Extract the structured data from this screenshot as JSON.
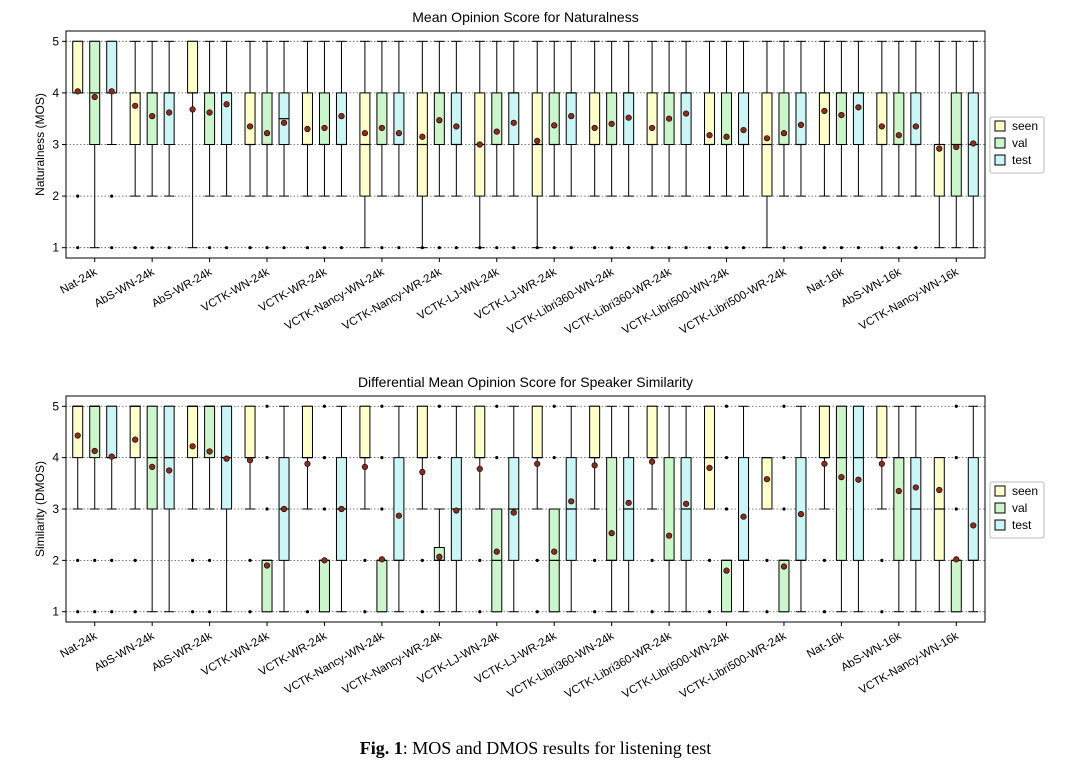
{
  "caption": {
    "label": "Fig. 1",
    "text": ": MOS and DMOS results for listening test"
  },
  "colors": {
    "seen": "#ffffcc",
    "val": "#ccf5cc",
    "test": "#ccf5f5",
    "mean": "#8b2a1e"
  },
  "chart_data": [
    {
      "type": "box",
      "title": "Mean Opinion Score for Naturalness",
      "ylabel": "Naturalness (MOS)",
      "ylim": [
        0.8,
        5.2
      ],
      "yticks": [
        1,
        2,
        3,
        4,
        5
      ],
      "grid": "horizontal dotted",
      "legend": {
        "position": "right",
        "entries": [
          "seen",
          "val",
          "test"
        ]
      },
      "categories": [
        "Nat-24k",
        "AbS-WN-24k",
        "AbS-WR-24k",
        "VCTK-WN-24k",
        "VCTK-WR-24k",
        "VCTK-Nancy-WN-24k",
        "VCTK-Nancy-WR-24k",
        "VCTK-LJ-WN-24k",
        "VCTK-LJ-WR-24k",
        "VCTK-Libri360-WN-24k",
        "VCTK-Libri360-WR-24k",
        "VCTK-Libri500-WN-24k",
        "VCTK-Libri500-WR-24k",
        "Nat-16k",
        "AbS-WN-16k",
        "VCTK-Nancy-WN-16k"
      ],
      "series": [
        {
          "name": "seen",
          "stats": [
            [
              4,
              4,
              4,
              5,
              5,
              4.03
            ],
            [
              2,
              3,
              4,
              4,
              5,
              3.75
            ],
            [
              1,
              4,
              4,
              5,
              5,
              3.68
            ],
            [
              2,
              3,
              3,
              4,
              5,
              3.35
            ],
            [
              2,
              3,
              3,
              4,
              5,
              3.3
            ],
            [
              1,
              2,
              3,
              4,
              5,
              3.22
            ],
            [
              1,
              2,
              3,
              4,
              5,
              3.15
            ],
            [
              1,
              2,
              3,
              4,
              5,
              3.0
            ],
            [
              1,
              2,
              3,
              4,
              5,
              3.07
            ],
            [
              2,
              3,
              3,
              4,
              5,
              3.32
            ],
            [
              2,
              3,
              3,
              4,
              5,
              3.32
            ],
            [
              2,
              3,
              3,
              4,
              5,
              3.18
            ],
            [
              1,
              2,
              3,
              4,
              5,
              3.12
            ],
            [
              2,
              3,
              4,
              4,
              5,
              3.65
            ],
            [
              2,
              3,
              3,
              4,
              5,
              3.35
            ],
            [
              1,
              2,
              3,
              3,
              5,
              2.92
            ]
          ],
          "outliers": [
            [
              2,
              1
            ],
            [
              1
            ],
            [],
            [
              1
            ],
            [
              1
            ],
            [],
            [
              1
            ],
            [
              1
            ],
            [
              1
            ],
            [
              1
            ],
            [
              1
            ],
            [
              1
            ],
            [],
            [
              1
            ],
            [
              1
            ],
            []
          ]
        },
        {
          "name": "val",
          "stats": [
            [
              1,
              3,
              4,
              5,
              5,
              3.92
            ],
            [
              2,
              3,
              4,
              4,
              5,
              3.55
            ],
            [
              2,
              3,
              4,
              4,
              5,
              3.62
            ],
            [
              2,
              3,
              3,
              4,
              5,
              3.22
            ],
            [
              2,
              3,
              3,
              4,
              5,
              3.32
            ],
            [
              2,
              3,
              3,
              4,
              5,
              3.32
            ],
            [
              2,
              3,
              4,
              4,
              5,
              3.47
            ],
            [
              2,
              3,
              3,
              4,
              5,
              3.25
            ],
            [
              2,
              3,
              3,
              4,
              5,
              3.37
            ],
            [
              2,
              3,
              3,
              4,
              5,
              3.4
            ],
            [
              2,
              3,
              4,
              4,
              5,
              3.5
            ],
            [
              2,
              3,
              3,
              4,
              5,
              3.15
            ],
            [
              2,
              3,
              3,
              4,
              5,
              3.22
            ],
            [
              2,
              3,
              4,
              4,
              5,
              3.57
            ],
            [
              2,
              3,
              3,
              4,
              5,
              3.18
            ],
            [
              1,
              2,
              3,
              4,
              5,
              2.95
            ]
          ],
          "outliers": [
            [],
            [
              1
            ],
            [
              1
            ],
            [
              1
            ],
            [
              1
            ],
            [
              1
            ],
            [
              1
            ],
            [
              1
            ],
            [
              1
            ],
            [
              1
            ],
            [
              1
            ],
            [
              1
            ],
            [
              1
            ],
            [
              1
            ],
            [
              1
            ],
            []
          ]
        },
        {
          "name": "test",
          "stats": [
            [
              3,
              4,
              4,
              5,
              5,
              4.03
            ],
            [
              2,
              3,
              4,
              4,
              5,
              3.62
            ],
            [
              2,
              3,
              4,
              4,
              5,
              3.78
            ],
            [
              2,
              3,
              3.5,
              4,
              5,
              3.42
            ],
            [
              2,
              3,
              3,
              4,
              5,
              3.55
            ],
            [
              2,
              3,
              3,
              4,
              5,
              3.22
            ],
            [
              2,
              3,
              3,
              4,
              5,
              3.35
            ],
            [
              2,
              3,
              4,
              4,
              5,
              3.42
            ],
            [
              2,
              3,
              4,
              4,
              5,
              3.55
            ],
            [
              2,
              3,
              4,
              4,
              5,
              3.52
            ],
            [
              2,
              3,
              4,
              4,
              5,
              3.6
            ],
            [
              2,
              3,
              3,
              4,
              5,
              3.28
            ],
            [
              2,
              3,
              3,
              4,
              5,
              3.38
            ],
            [
              2,
              3,
              4,
              4,
              5,
              3.72
            ],
            [
              2,
              3,
              3,
              4,
              5,
              3.35
            ],
            [
              1,
              2,
              3,
              4,
              5,
              3.02
            ]
          ],
          "outliers": [
            [
              2,
              1
            ],
            [
              1
            ],
            [
              1
            ],
            [
              1
            ],
            [
              1
            ],
            [
              1
            ],
            [
              1
            ],
            [
              1
            ],
            [
              1
            ],
            [
              1
            ],
            [
              1
            ],
            [
              1
            ],
            [
              1
            ],
            [
              1
            ],
            [
              1
            ],
            []
          ]
        }
      ]
    },
    {
      "type": "box",
      "title": "Differential Mean Opinion Score for Speaker Similarity",
      "ylabel": "Similarity (DMOS)",
      "ylim": [
        0.8,
        5.2
      ],
      "yticks": [
        1,
        2,
        3,
        4,
        5
      ],
      "grid": "horizontal dotted",
      "legend": {
        "position": "right",
        "entries": [
          "seen",
          "val",
          "test"
        ]
      },
      "categories": [
        "Nat-24k",
        "AbS-WN-24k",
        "AbS-WR-24k",
        "VCTK-WN-24k",
        "VCTK-WR-24k",
        "VCTK-Nancy-WN-24k",
        "VCTK-Nancy-WR-24k",
        "VCTK-LJ-WN-24k",
        "VCTK-LJ-WR-24k",
        "VCTK-Libri360-WN-24k",
        "VCTK-Libri360-WR-24k",
        "VCTK-Libri500-WN-24k",
        "VCTK-Libri500-WR-24k",
        "Nat-16k",
        "AbS-WN-16k",
        "VCTK-Nancy-WN-16k"
      ],
      "series": [
        {
          "name": "seen",
          "stats": [
            [
              3,
              4,
              5,
              5,
              5,
              4.43
            ],
            [
              3,
              4,
              5,
              5,
              5,
              4.35
            ],
            [
              3,
              4,
              5,
              5,
              5,
              4.22
            ],
            [
              3,
              4,
              4,
              5,
              5,
              3.95
            ],
            [
              3,
              4,
              4,
              5,
              5,
              3.88
            ],
            [
              3,
              4,
              4,
              5,
              5,
              3.82
            ],
            [
              3,
              4,
              4,
              5,
              5,
              3.72
            ],
            [
              3,
              4,
              4,
              5,
              5,
              3.78
            ],
            [
              3,
              4,
              4,
              5,
              5,
              3.88
            ],
            [
              3,
              4,
              4,
              5,
              5,
              3.85
            ],
            [
              3,
              4,
              4,
              5,
              5,
              3.92
            ],
            [
              3,
              3,
              4,
              5,
              5,
              3.8
            ],
            [
              3,
              3,
              4,
              4,
              4,
              3.58
            ],
            [
              3,
              4,
              4,
              5,
              5,
              3.88
            ],
            [
              3,
              4,
              4,
              5,
              5,
              3.88
            ],
            [
              1,
              2,
              3,
              4,
              4,
              3.37
            ]
          ],
          "outliers": [
            [
              2,
              1
            ],
            [
              2,
              1
            ],
            [
              2,
              1
            ],
            [
              2,
              1
            ],
            [
              1
            ],
            [
              2,
              1
            ],
            [
              2,
              1
            ],
            [
              2,
              1
            ],
            [
              2,
              1
            ],
            [
              2,
              1
            ],
            [
              2,
              1
            ],
            [
              2,
              1
            ],
            [
              2,
              1
            ],
            [
              2,
              1
            ],
            [
              2,
              1
            ],
            []
          ]
        },
        {
          "name": "val",
          "stats": [
            [
              3,
              4,
              5,
              5,
              5,
              4.13
            ],
            [
              1,
              3,
              4,
              5,
              5,
              3.82
            ],
            [
              3,
              4,
              5,
              5,
              5,
              4.12
            ],
            [
              1,
              1,
              2,
              2,
              2,
              1.9
            ],
            [
              1,
              1,
              2,
              2,
              2,
              2.0
            ],
            [
              1,
              1,
              2,
              2,
              2,
              2.02
            ],
            [
              1,
              2,
              2,
              2.25,
              3,
              2.07
            ],
            [
              1,
              1,
              2,
              3,
              3,
              2.17
            ],
            [
              1,
              1,
              2,
              3,
              3,
              2.17
            ],
            [
              1,
              2,
              2,
              4,
              5,
              2.53
            ],
            [
              1,
              2,
              2,
              4,
              5,
              2.48
            ],
            [
              1,
              1,
              2,
              2,
              2,
              1.8
            ],
            [
              1,
              1,
              2,
              2,
              2,
              1.88
            ],
            [
              1,
              2,
              4,
              5,
              5,
              3.62
            ],
            [
              1,
              2,
              4,
              4,
              5,
              3.35
            ],
            [
              1,
              1,
              2,
              2,
              2,
              2.02
            ]
          ],
          "outliers": [
            [
              2,
              1
            ],
            [],
            [
              2,
              1
            ],
            [
              5,
              4,
              3
            ],
            [
              5,
              4,
              3
            ],
            [
              5,
              4,
              3
            ],
            [
              5,
              4
            ],
            [
              5,
              4
            ],
            [
              5,
              4
            ],
            [],
            [],
            [
              5,
              4,
              3
            ],
            [
              5,
              4,
              3
            ],
            [],
            [],
            [
              5,
              4,
              3
            ]
          ]
        },
        {
          "name": "test",
          "stats": [
            [
              3,
              4,
              4,
              5,
              5,
              4.02
            ],
            [
              1,
              3,
              4,
              5,
              5,
              3.75
            ],
            [
              1,
              3,
              4,
              5,
              5,
              3.98
            ],
            [
              1,
              2,
              3,
              4,
              5,
              3.0
            ],
            [
              1,
              2,
              3,
              4,
              5,
              3.0
            ],
            [
              1,
              2,
              2,
              4,
              5,
              2.87
            ],
            [
              1,
              2,
              3,
              4,
              5,
              2.97
            ],
            [
              1,
              2,
              3,
              4,
              5,
              2.93
            ],
            [
              1,
              2,
              3,
              4,
              5,
              3.15
            ],
            [
              1,
              2,
              3,
              4,
              5,
              3.12
            ],
            [
              1,
              2,
              3,
              4,
              5,
              3.1
            ],
            [
              1,
              2,
              2,
              4,
              5,
              2.85
            ],
            [
              1,
              2,
              2,
              4,
              5,
              2.9
            ],
            [
              1,
              2,
              4,
              5,
              5,
              3.57
            ],
            [
              1,
              2,
              3,
              4,
              5,
              3.42
            ],
            [
              1,
              2,
              2,
              4,
              5,
              2.68
            ]
          ],
          "outliers": [
            [
              2,
              1
            ],
            [],
            [],
            [],
            [],
            [],
            [],
            [],
            [],
            [],
            [],
            [],
            [],
            [],
            [],
            []
          ]
        }
      ]
    }
  ]
}
